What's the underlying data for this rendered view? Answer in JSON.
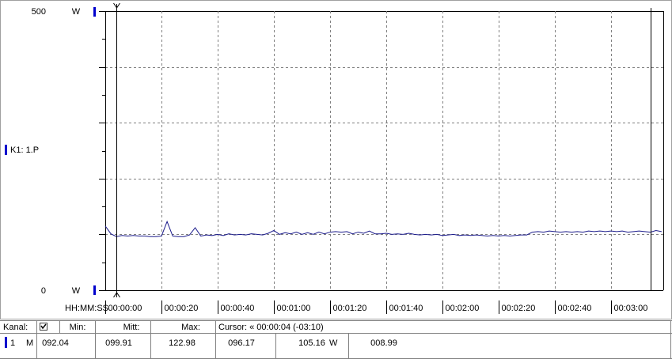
{
  "chart_data": {
    "type": "line",
    "x": [
      0,
      2,
      4,
      6,
      8,
      10,
      12,
      14,
      16,
      18,
      20,
      22,
      24,
      26,
      28,
      30,
      32,
      34,
      36,
      38,
      40,
      42,
      44,
      46,
      48,
      50,
      52,
      54,
      56,
      58,
      60,
      62,
      64,
      66,
      68,
      70,
      72,
      74,
      76,
      78,
      80,
      82,
      84,
      86,
      88,
      90,
      92,
      94,
      96,
      98,
      100,
      102,
      104,
      106,
      108,
      110,
      112,
      114,
      116,
      118,
      120,
      122,
      124,
      126,
      128,
      130,
      132,
      134,
      136,
      138,
      140,
      142,
      144,
      146,
      148,
      150,
      152,
      154,
      156,
      158,
      160,
      162,
      164,
      166,
      168,
      170,
      172,
      174,
      176,
      178,
      180,
      182,
      184,
      186,
      188,
      190,
      192,
      194,
      196,
      198
    ],
    "series": [
      {
        "name": "K1: 1.P",
        "color": "#1c1c8c",
        "values": [
          115,
          101,
          96,
          98,
          97,
          98,
          97,
          97,
          96,
          96,
          97,
          123,
          97,
          96,
          96,
          99,
          112,
          97,
          99,
          98,
          100,
          98,
          101,
          99,
          100,
          99,
          101,
          100,
          99,
          102,
          107,
          100,
          103,
          101,
          104,
          100,
          103,
          100,
          104,
          101,
          104,
          105,
          104,
          105,
          101,
          104,
          102,
          106,
          101,
          101,
          102,
          100,
          101,
          100,
          102,
          100,
          99,
          100,
          99,
          100,
          98,
          99,
          100,
          98,
          99,
          98,
          99,
          98,
          97,
          98,
          97,
          98,
          97,
          98,
          99,
          99,
          104,
          105,
          104,
          106,
          105,
          104,
          105,
          104,
          105,
          104,
          106,
          105,
          106,
          105,
          106,
          105,
          106,
          104,
          105,
          106,
          105,
          104,
          107,
          105
        ]
      }
    ],
    "xlim": [
      0,
      198.6
    ],
    "xticks": [
      {
        "value": 0,
        "label": "00:00:00"
      },
      {
        "value": 20,
        "label": "00:00:20"
      },
      {
        "value": 40,
        "label": "00:00:40"
      },
      {
        "value": 60,
        "label": "00:01:00"
      },
      {
        "value": 80,
        "label": "00:01:20"
      },
      {
        "value": 100,
        "label": "00:01:40"
      },
      {
        "value": 120,
        "label": "00:02:00"
      },
      {
        "value": 140,
        "label": "00:02:20"
      },
      {
        "value": 160,
        "label": "00:02:40"
      },
      {
        "value": 180,
        "label": "00:03:00"
      }
    ],
    "x_label": "HH:MM:SS",
    "ylim": [
      0,
      500
    ],
    "yticks": [
      0,
      500
    ],
    "y_unit": "W",
    "grid_y": [
      100,
      200,
      300,
      400
    ],
    "grid": true,
    "cursors": [
      4,
      194
    ]
  },
  "table": {
    "header": [
      "Kanal:",
      "Min:",
      "Mitt:",
      "Max:",
      "Cursor: « 00:00:04 (-03:10)"
    ],
    "row": [
      "1",
      "M",
      "092.04",
      "099.91",
      "122.98",
      "096.17",
      "105.16",
      "W",
      "008.99"
    ]
  }
}
